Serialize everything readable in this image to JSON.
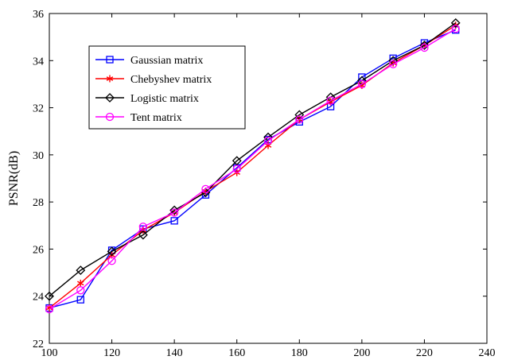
{
  "chart_data": {
    "type": "line",
    "title": "",
    "xlabel": "",
    "ylabel": "PSNR(dB)",
    "xlim": [
      100,
      240
    ],
    "ylim": [
      22,
      36
    ],
    "xticks": [
      100,
      120,
      140,
      160,
      180,
      200,
      220,
      240
    ],
    "yticks": [
      22,
      24,
      26,
      28,
      30,
      32,
      34,
      36
    ],
    "grid": false,
    "legend_position": "top-left",
    "x": [
      100,
      110,
      120,
      130,
      140,
      150,
      160,
      170,
      180,
      190,
      200,
      210,
      220,
      230
    ],
    "series": [
      {
        "name": "Gaussian matrix",
        "color": "#0000ff",
        "marker": "square",
        "values": [
          23.5,
          23.85,
          25.95,
          26.85,
          27.2,
          28.3,
          29.45,
          30.65,
          31.4,
          32.05,
          33.3,
          34.1,
          34.75,
          35.3
        ]
      },
      {
        "name": "Chebyshev matrix",
        "color": "#ff0000",
        "marker": "star",
        "values": [
          23.5,
          24.55,
          25.75,
          26.8,
          27.55,
          28.45,
          29.25,
          30.4,
          31.5,
          32.25,
          32.95,
          33.9,
          34.65,
          35.5
        ]
      },
      {
        "name": "Logistic matrix",
        "color": "#000000",
        "marker": "diamond",
        "values": [
          24.0,
          25.1,
          25.9,
          26.6,
          27.65,
          28.4,
          29.75,
          30.75,
          31.7,
          32.45,
          33.15,
          34.0,
          34.65,
          35.6
        ]
      },
      {
        "name": "Tent matrix",
        "color": "#ff00ff",
        "marker": "circle",
        "values": [
          23.45,
          24.25,
          25.5,
          26.95,
          27.55,
          28.55,
          29.4,
          30.6,
          31.5,
          32.3,
          33.0,
          33.85,
          34.55,
          35.35
        ]
      }
    ]
  }
}
